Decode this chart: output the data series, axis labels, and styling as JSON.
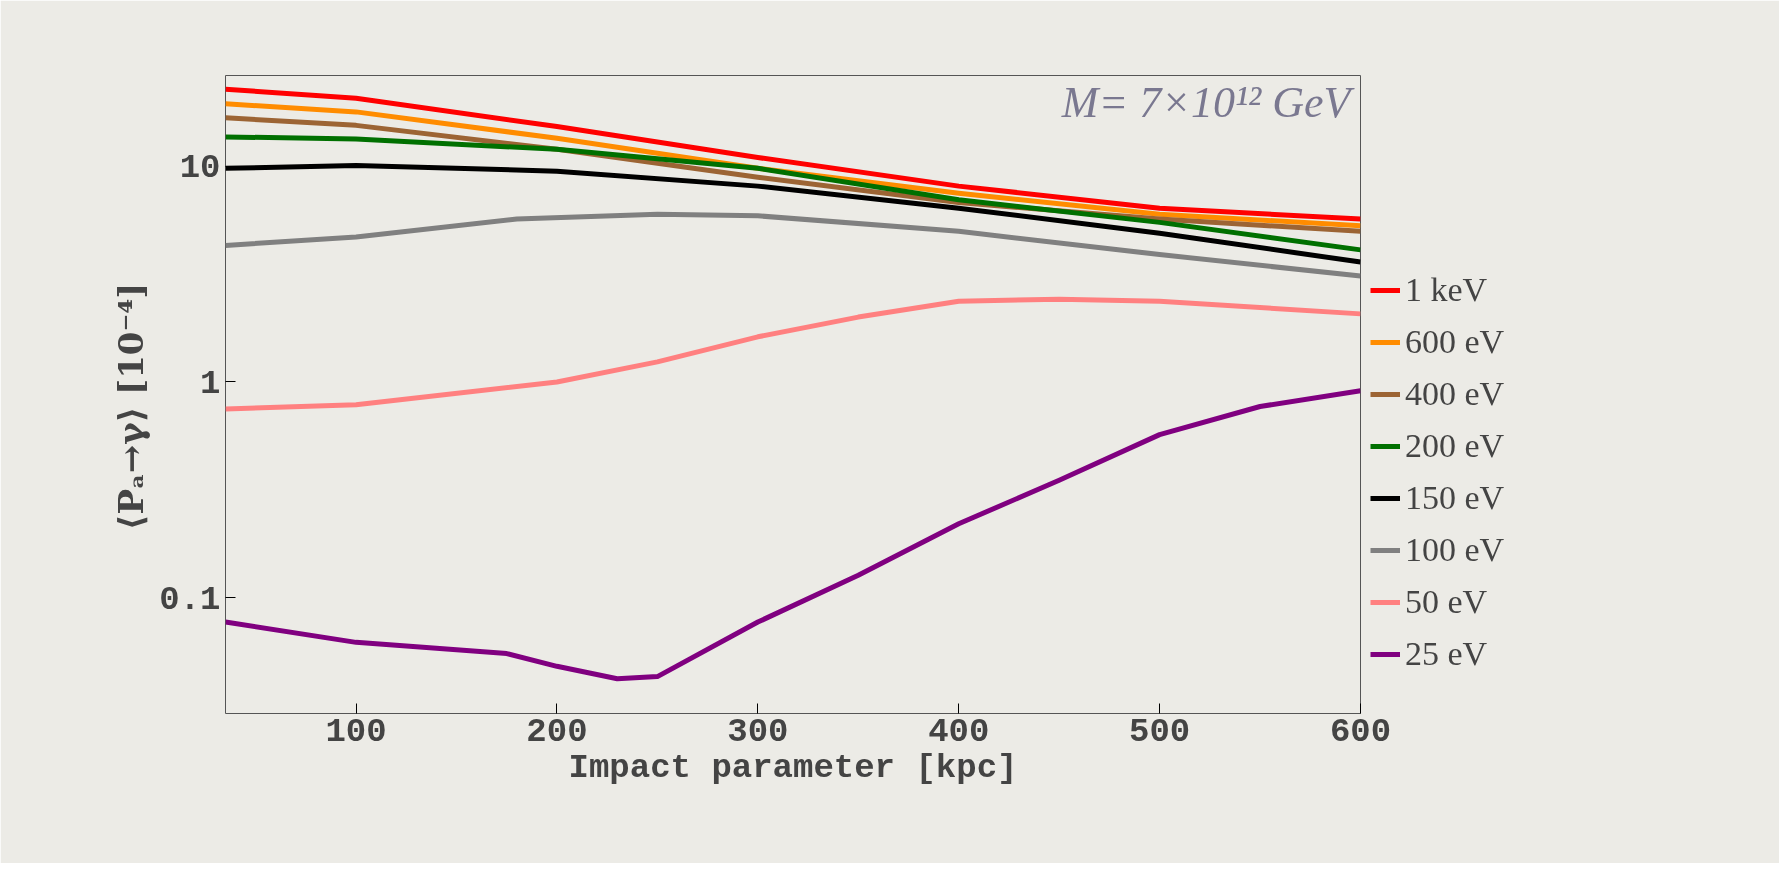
{
  "chart_data": {
    "type": "line",
    "xlabel": "Impact parameter [kpc]",
    "ylabel": "⟨Pₐ→γ⟩   [10⁻⁴]",
    "annotations": [
      "M= 7×10¹² GeV"
    ],
    "log": "y",
    "grid": false,
    "legend": "right",
    "marker": "none",
    "line_style": "solid",
    "xlim": [
      35,
      600
    ],
    "ylim": [
      0.029,
      26.4
    ],
    "xticks": [
      100,
      200,
      300,
      400,
      500,
      600
    ],
    "yticks": [
      0.1,
      1,
      10
    ],
    "series": [
      {
        "name": "1 keV",
        "color": "#ff0000",
        "x": [
          35,
          100,
          200,
          300,
          400,
          500,
          600
        ],
        "values": [
          22.8,
          20.7,
          15.3,
          11.0,
          8.1,
          6.4,
          5.7
        ]
      },
      {
        "name": "600 eV",
        "color": "#ff8c00",
        "x": [
          35,
          100,
          200,
          300,
          400,
          500,
          600
        ],
        "values": [
          19.5,
          17.9,
          13.5,
          9.8,
          7.5,
          6.0,
          5.3
        ]
      },
      {
        "name": "400 eV",
        "color": "#9c6434",
        "x": [
          35,
          100,
          200,
          300,
          400,
          500,
          600
        ],
        "values": [
          16.8,
          15.5,
          12.0,
          8.9,
          6.8,
          5.7,
          5.0
        ]
      },
      {
        "name": "200 eV",
        "color": "#007000",
        "x": [
          35,
          100,
          200,
          300,
          400,
          500,
          600
        ],
        "values": [
          13.7,
          13.4,
          12.0,
          9.8,
          7.0,
          5.5,
          4.1
        ]
      },
      {
        "name": "150 eV",
        "color": "#000000",
        "x": [
          35,
          100,
          200,
          300,
          400,
          500,
          600
        ],
        "values": [
          9.8,
          10.1,
          9.5,
          8.1,
          6.4,
          4.9,
          3.6
        ]
      },
      {
        "name": "100 eV",
        "color": "#808080",
        "x": [
          35,
          100,
          180,
          250,
          300,
          400,
          500,
          600
        ],
        "values": [
          4.3,
          4.7,
          5.7,
          6.0,
          5.9,
          5.0,
          3.9,
          3.1
        ]
      },
      {
        "name": "50 eV",
        "color": "#ff8080",
        "x": [
          35,
          100,
          200,
          250,
          300,
          350,
          400,
          450,
          500,
          600
        ],
        "values": [
          0.75,
          0.785,
          1.0,
          1.24,
          1.62,
          2.0,
          2.37,
          2.42,
          2.37,
          2.07
        ]
      },
      {
        "name": "25 eV",
        "color": "#800080",
        "x": [
          35,
          100,
          175,
          200,
          230,
          250,
          300,
          350,
          400,
          450,
          500,
          550,
          600
        ],
        "values": [
          0.077,
          0.062,
          0.055,
          0.048,
          0.042,
          0.043,
          0.077,
          0.127,
          0.22,
          0.35,
          0.57,
          0.77,
          0.91
        ]
      }
    ]
  }
}
